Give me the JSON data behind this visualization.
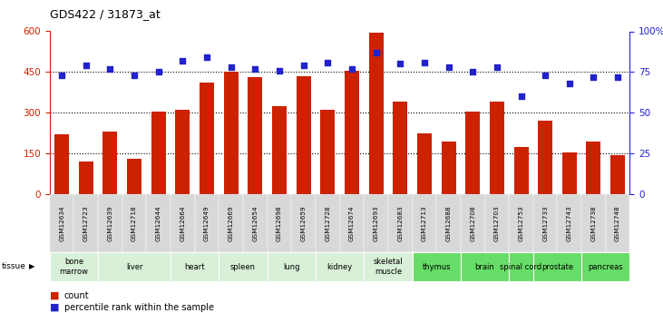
{
  "title": "GDS422 / 31873_at",
  "samples": [
    "GSM12634",
    "GSM12723",
    "GSM12639",
    "GSM12718",
    "GSM12644",
    "GSM12664",
    "GSM12649",
    "GSM12669",
    "GSM12654",
    "GSM12698",
    "GSM12659",
    "GSM12728",
    "GSM12674",
    "GSM12693",
    "GSM12683",
    "GSM12713",
    "GSM12688",
    "GSM12708",
    "GSM12703",
    "GSM12753",
    "GSM12733",
    "GSM12743",
    "GSM12738",
    "GSM12748"
  ],
  "counts": [
    220,
    120,
    230,
    130,
    305,
    310,
    410,
    450,
    430,
    325,
    435,
    310,
    455,
    595,
    340,
    225,
    195,
    305,
    340,
    175,
    270,
    155,
    195,
    145
  ],
  "percentiles": [
    73,
    79,
    77,
    73,
    75,
    82,
    84,
    78,
    77,
    76,
    79,
    81,
    77,
    87,
    80,
    81,
    78,
    75,
    78,
    60,
    73,
    68,
    72,
    72
  ],
  "tissues": [
    {
      "label": "bone\nmarrow",
      "start": 0,
      "end": 2,
      "color": "#d8f0d8"
    },
    {
      "label": "liver",
      "start": 2,
      "end": 5,
      "color": "#d8f0d8"
    },
    {
      "label": "heart",
      "start": 5,
      "end": 7,
      "color": "#d8f0d8"
    },
    {
      "label": "spleen",
      "start": 7,
      "end": 9,
      "color": "#d8f0d8"
    },
    {
      "label": "lung",
      "start": 9,
      "end": 11,
      "color": "#d8f0d8"
    },
    {
      "label": "kidney",
      "start": 11,
      "end": 13,
      "color": "#d8f0d8"
    },
    {
      "label": "skeletal\nmuscle",
      "start": 13,
      "end": 15,
      "color": "#d8f0d8"
    },
    {
      "label": "thymus",
      "start": 15,
      "end": 17,
      "color": "#66dd66"
    },
    {
      "label": "brain",
      "start": 17,
      "end": 19,
      "color": "#66dd66"
    },
    {
      "label": "spinal cord",
      "start": 19,
      "end": 20,
      "color": "#66dd66"
    },
    {
      "label": "prostate",
      "start": 20,
      "end": 22,
      "color": "#66dd66"
    },
    {
      "label": "pancreas",
      "start": 22,
      "end": 24,
      "color": "#66dd66"
    }
  ],
  "bar_color": "#cc2200",
  "dot_color": "#2222cc",
  "ylim_left": [
    0,
    600
  ],
  "ylim_right": [
    0,
    100
  ],
  "yticks_left": [
    0,
    150,
    300,
    450,
    600
  ],
  "yticks_right": [
    0,
    25,
    50,
    75,
    100
  ],
  "yticklabels_right": [
    "0",
    "25",
    "50",
    "75",
    "100%"
  ],
  "grid_values": [
    150,
    300,
    450
  ],
  "fig_width": 7.31,
  "fig_height": 3.45,
  "fig_dpi": 100
}
